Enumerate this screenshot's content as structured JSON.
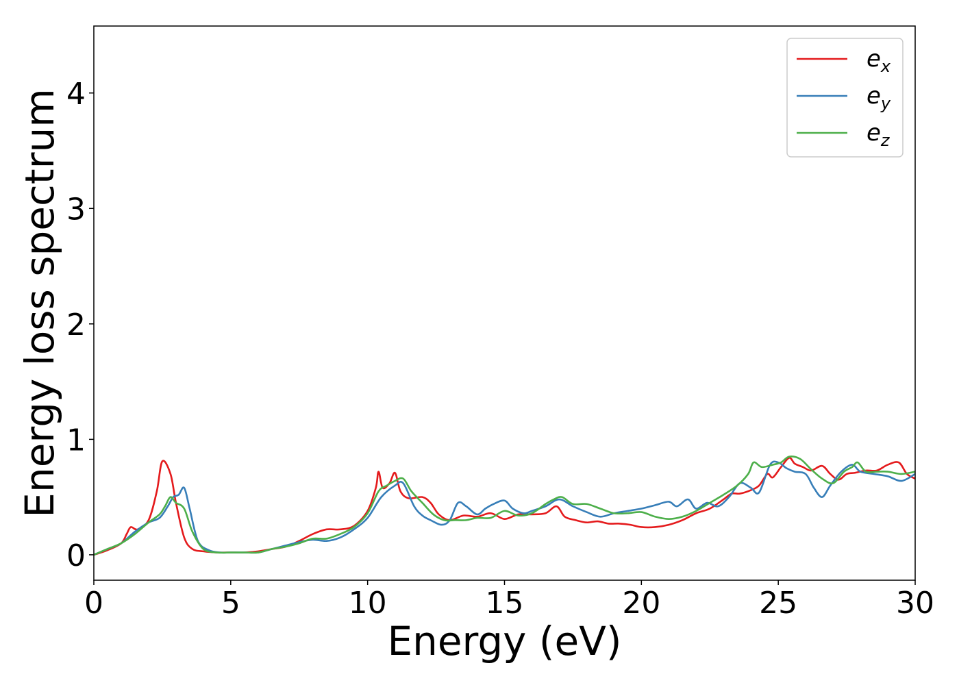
{
  "chart_data": {
    "type": "line",
    "title": "",
    "xlabel": "Energy (eV)",
    "ylabel": "Energy loss spectrum",
    "xlim": [
      0,
      30
    ],
    "ylim": [
      -0.22,
      4.58
    ],
    "xticks": [
      "0",
      "5",
      "10",
      "15",
      "20",
      "25",
      "30"
    ],
    "yticks": [
      "0",
      "1",
      "2",
      "3",
      "4"
    ],
    "grid": false,
    "legend": "top-right",
    "series": [
      {
        "name": "e",
        "sub": "x",
        "color": "#e41a1c",
        "x": [
          0,
          0.5,
          1.0,
          1.2,
          1.35,
          1.6,
          2.0,
          2.3,
          2.5,
          2.8,
          3.0,
          3.3,
          3.6,
          4.0,
          4.5,
          5.0,
          5.5,
          6.0,
          6.5,
          7.0,
          7.5,
          8.0,
          8.5,
          9.0,
          9.5,
          10.0,
          10.3,
          10.4,
          10.55,
          10.8,
          11.0,
          11.2,
          11.5,
          12.0,
          12.3,
          12.6,
          13.0,
          13.5,
          14.0,
          14.5,
          15.0,
          15.5,
          16.0,
          16.5,
          16.9,
          17.2,
          17.6,
          18.0,
          18.4,
          18.8,
          19.2,
          19.6,
          20.0,
          20.5,
          21.0,
          21.5,
          22.0,
          22.5,
          23.0,
          23.3,
          23.6,
          24.0,
          24.3,
          24.6,
          24.8,
          25.1,
          25.4,
          25.6,
          25.9,
          26.2,
          26.6,
          26.9,
          27.2,
          27.5,
          27.8,
          28.2,
          28.6,
          29.0,
          29.4,
          29.7,
          30.0
        ],
        "y": [
          0,
          0.04,
          0.1,
          0.18,
          0.24,
          0.22,
          0.3,
          0.55,
          0.81,
          0.7,
          0.45,
          0.15,
          0.05,
          0.03,
          0.02,
          0.02,
          0.02,
          0.03,
          0.05,
          0.07,
          0.12,
          0.18,
          0.22,
          0.22,
          0.25,
          0.38,
          0.58,
          0.72,
          0.58,
          0.62,
          0.71,
          0.55,
          0.49,
          0.5,
          0.45,
          0.35,
          0.3,
          0.34,
          0.33,
          0.36,
          0.31,
          0.35,
          0.35,
          0.36,
          0.42,
          0.33,
          0.3,
          0.28,
          0.29,
          0.27,
          0.27,
          0.26,
          0.24,
          0.24,
          0.26,
          0.3,
          0.36,
          0.4,
          0.48,
          0.53,
          0.53,
          0.56,
          0.6,
          0.7,
          0.67,
          0.76,
          0.84,
          0.79,
          0.76,
          0.73,
          0.77,
          0.7,
          0.65,
          0.7,
          0.71,
          0.73,
          0.73,
          0.78,
          0.8,
          0.7,
          0.66
        ]
      },
      {
        "name": "e",
        "sub": "y",
        "color": "#377eb8",
        "x": [
          0,
          0.5,
          1.0,
          1.5,
          2.0,
          2.4,
          2.7,
          2.9,
          3.1,
          3.3,
          3.5,
          3.8,
          4.2,
          4.6,
          5.0,
          5.5,
          6.0,
          6.5,
          7.0,
          7.5,
          8.0,
          8.5,
          9.0,
          9.5,
          10.0,
          10.5,
          11.0,
          11.3,
          11.7,
          12.0,
          12.3,
          12.7,
          13.0,
          13.3,
          13.6,
          14.0,
          14.3,
          14.6,
          15.0,
          15.3,
          15.7,
          16.0,
          16.5,
          17.0,
          17.5,
          18.0,
          18.5,
          19.0,
          19.5,
          20.0,
          20.5,
          21.0,
          21.3,
          21.7,
          22.0,
          22.4,
          22.8,
          23.2,
          23.6,
          24.0,
          24.3,
          24.7,
          25.0,
          25.3,
          25.6,
          26.0,
          26.3,
          26.6,
          26.9,
          27.3,
          27.7,
          28.0,
          28.5,
          29.0,
          29.5,
          30.0
        ],
        "y": [
          0,
          0.05,
          0.1,
          0.2,
          0.28,
          0.32,
          0.42,
          0.5,
          0.52,
          0.58,
          0.4,
          0.12,
          0.04,
          0.02,
          0.02,
          0.02,
          0.02,
          0.05,
          0.08,
          0.11,
          0.13,
          0.12,
          0.15,
          0.22,
          0.32,
          0.5,
          0.6,
          0.62,
          0.42,
          0.34,
          0.3,
          0.26,
          0.3,
          0.45,
          0.42,
          0.35,
          0.4,
          0.44,
          0.47,
          0.4,
          0.36,
          0.38,
          0.42,
          0.48,
          0.42,
          0.37,
          0.33,
          0.36,
          0.38,
          0.4,
          0.43,
          0.46,
          0.42,
          0.48,
          0.4,
          0.45,
          0.42,
          0.5,
          0.62,
          0.58,
          0.54,
          0.78,
          0.8,
          0.75,
          0.72,
          0.7,
          0.58,
          0.5,
          0.6,
          0.72,
          0.78,
          0.72,
          0.7,
          0.68,
          0.64,
          0.7
        ]
      },
      {
        "name": "e",
        "sub": "z",
        "color": "#4daf4a",
        "x": [
          0,
          0.5,
          1.0,
          1.5,
          2.0,
          2.4,
          2.6,
          2.8,
          3.0,
          3.3,
          3.6,
          4.0,
          4.5,
          5.0,
          5.5,
          6.0,
          6.5,
          7.0,
          7.5,
          8.0,
          8.5,
          9.0,
          9.5,
          10.0,
          10.4,
          10.7,
          11.0,
          11.3,
          11.6,
          12.0,
          12.4,
          12.8,
          13.2,
          13.6,
          14.0,
          14.5,
          15.0,
          15.5,
          16.0,
          16.5,
          16.8,
          17.1,
          17.5,
          18.0,
          18.5,
          19.0,
          19.5,
          20.0,
          20.5,
          21.0,
          21.5,
          22.0,
          22.5,
          23.0,
          23.5,
          23.9,
          24.1,
          24.4,
          24.8,
          25.1,
          25.4,
          25.8,
          26.2,
          26.6,
          27.0,
          27.4,
          27.7,
          27.9,
          28.2,
          28.6,
          29.0,
          29.5,
          30.0
        ],
        "y": [
          0,
          0.05,
          0.1,
          0.18,
          0.28,
          0.35,
          0.42,
          0.5,
          0.45,
          0.4,
          0.2,
          0.05,
          0.02,
          0.02,
          0.02,
          0.02,
          0.05,
          0.07,
          0.1,
          0.14,
          0.14,
          0.18,
          0.24,
          0.36,
          0.55,
          0.6,
          0.64,
          0.66,
          0.55,
          0.45,
          0.35,
          0.3,
          0.3,
          0.3,
          0.32,
          0.32,
          0.38,
          0.34,
          0.36,
          0.44,
          0.48,
          0.5,
          0.44,
          0.44,
          0.4,
          0.36,
          0.36,
          0.37,
          0.33,
          0.31,
          0.33,
          0.38,
          0.45,
          0.52,
          0.6,
          0.7,
          0.8,
          0.76,
          0.78,
          0.8,
          0.85,
          0.83,
          0.74,
          0.66,
          0.62,
          0.72,
          0.76,
          0.8,
          0.72,
          0.72,
          0.72,
          0.7,
          0.72
        ]
      }
    ]
  }
}
